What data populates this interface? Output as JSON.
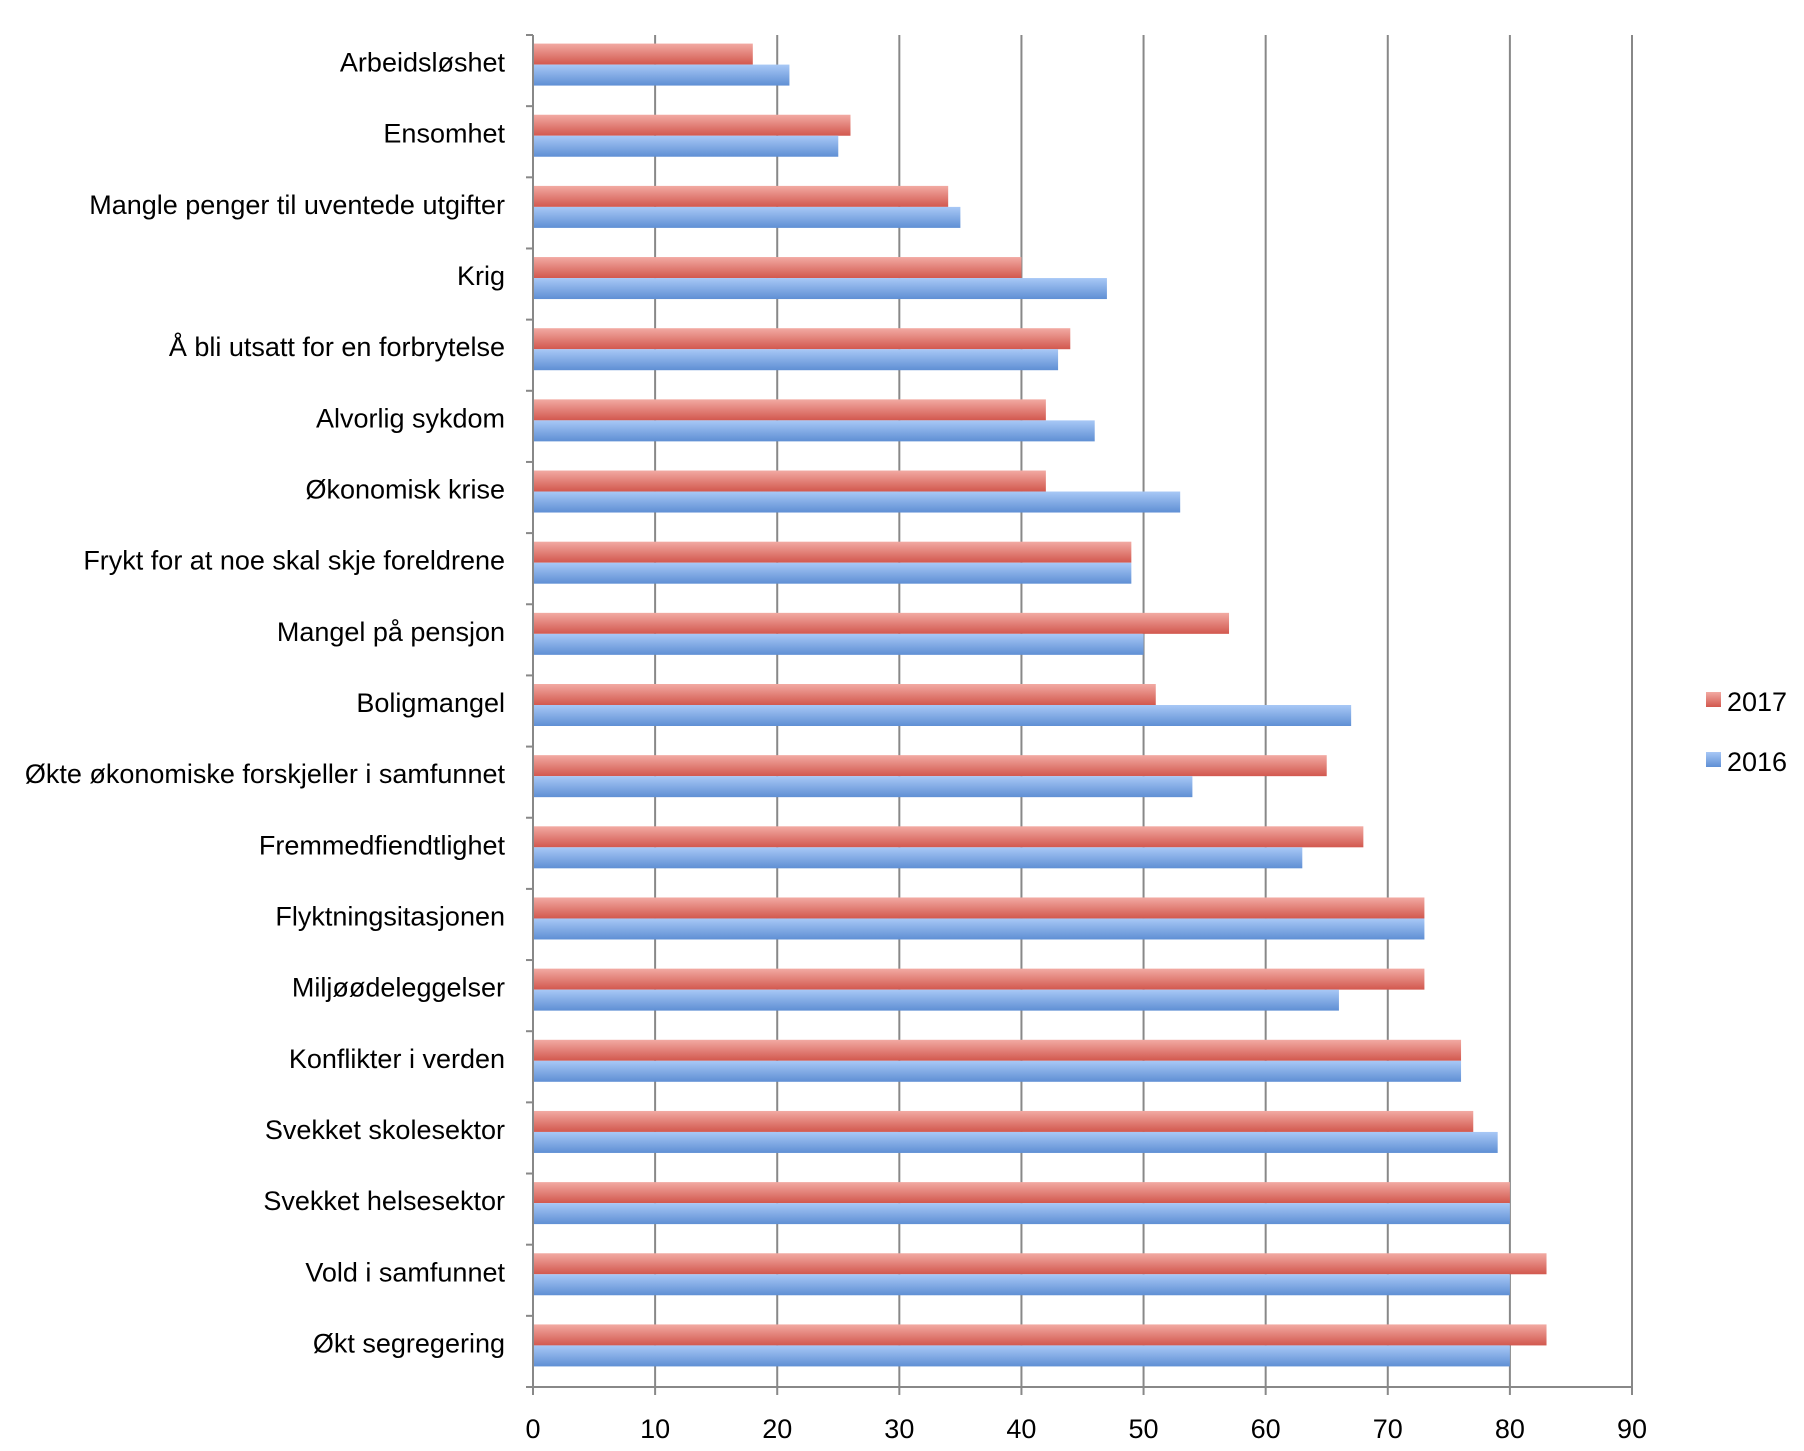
{
  "chart_data": {
    "type": "bar",
    "orientation": "horizontal",
    "categories": [
      "Arbeidsløshet",
      "Ensomhet",
      "Mangle penger til uventede utgifter",
      "Krig",
      "Å bli utsatt for en forbrytelse",
      "Alvorlig sykdom",
      "Økonomisk krise",
      "Frykt for at noe skal skje foreldrene",
      "Mangel på pensjon",
      "Boligmangel",
      "Økte økonomiske forskjeller i samfunnet",
      "Fremmedfiendtlighet",
      "Flyktningsitasjonen",
      "Miljøødeleggelser",
      "Konflikter i verden",
      "Svekket skolesektor",
      "Svekket helsesektor",
      "Vold i samfunnet",
      "Økt segregering"
    ],
    "series": [
      {
        "name": "2017",
        "color": "#d9645a",
        "values": [
          18,
          26,
          34,
          40,
          44,
          42,
          42,
          49,
          57,
          51,
          65,
          68,
          73,
          73,
          76,
          77,
          80,
          83,
          83
        ]
      },
      {
        "name": "2016",
        "color": "#6b9be0",
        "values": [
          21,
          25,
          35,
          47,
          43,
          46,
          53,
          49,
          50,
          67,
          54,
          63,
          73,
          66,
          76,
          79,
          80,
          80,
          80
        ]
      }
    ],
    "xlim": [
      0,
      90
    ],
    "xticks": [
      "0",
      "10",
      "20",
      "30",
      "40",
      "50",
      "60",
      "70",
      "80",
      "90"
    ],
    "grid": "vertical",
    "legend": "right",
    "title": "",
    "xlabel": "",
    "ylabel": ""
  }
}
